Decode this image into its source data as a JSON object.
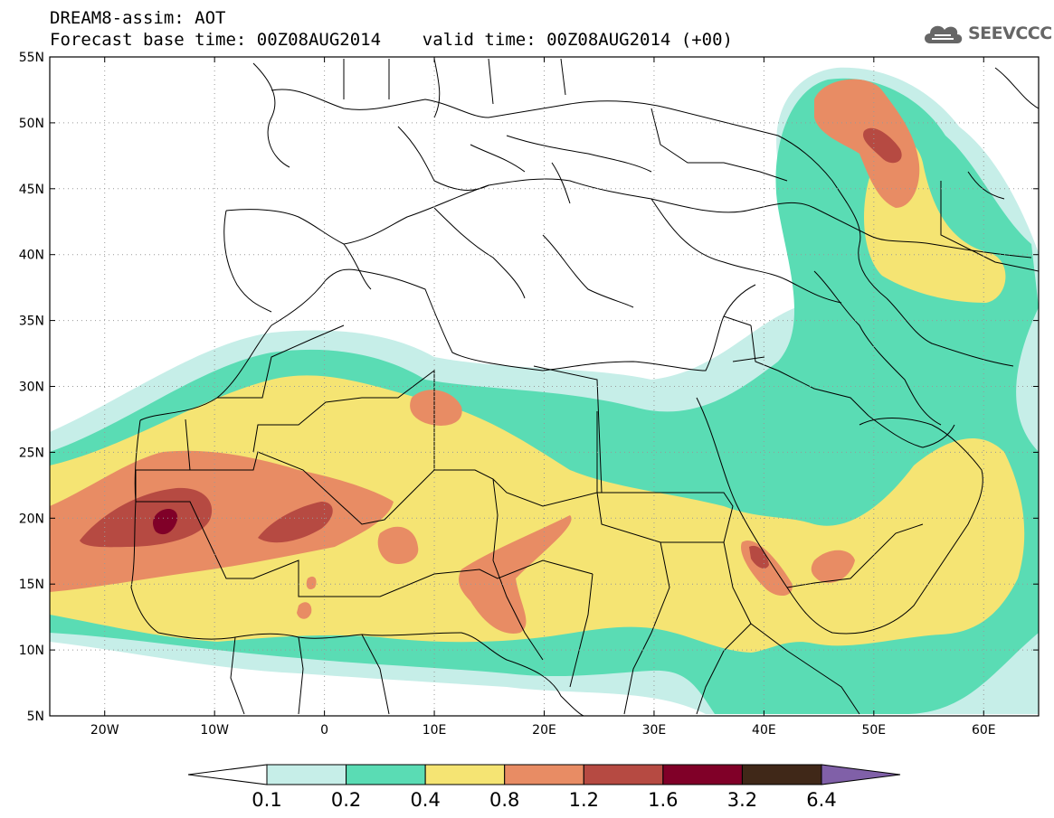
{
  "header": {
    "line1": "DREAM8-assim: AOT",
    "line2": "Forecast base time: 00Z08AUG2014    valid time: 00Z08AUG2014 (+00)"
  },
  "logo": {
    "text": "SEEVCCC",
    "icon": "cloud-icon"
  },
  "map": {
    "variable": "AOT",
    "lon_range": [
      -25,
      65
    ],
    "lat_range": [
      5,
      55
    ],
    "lat_ticks": [
      "55N",
      "50N",
      "45N",
      "40N",
      "35N",
      "30N",
      "25N",
      "20N",
      "15N",
      "10N",
      "5N"
    ],
    "lon_ticks": [
      "20W",
      "10W",
      "0",
      "10E",
      "20E",
      "30E",
      "40E",
      "50E",
      "60E"
    ],
    "grid": "dotted"
  },
  "colorbar": {
    "levels": [
      "0.1",
      "0.2",
      "0.4",
      "0.8",
      "1.2",
      "1.6",
      "3.2",
      "6.4"
    ],
    "colors": [
      "#ffffff",
      "#c6eee8",
      "#5adcb4",
      "#f5e473",
      "#e88c64",
      "#b64a42",
      "#800028",
      "#402818",
      "#8060a8"
    ]
  }
}
